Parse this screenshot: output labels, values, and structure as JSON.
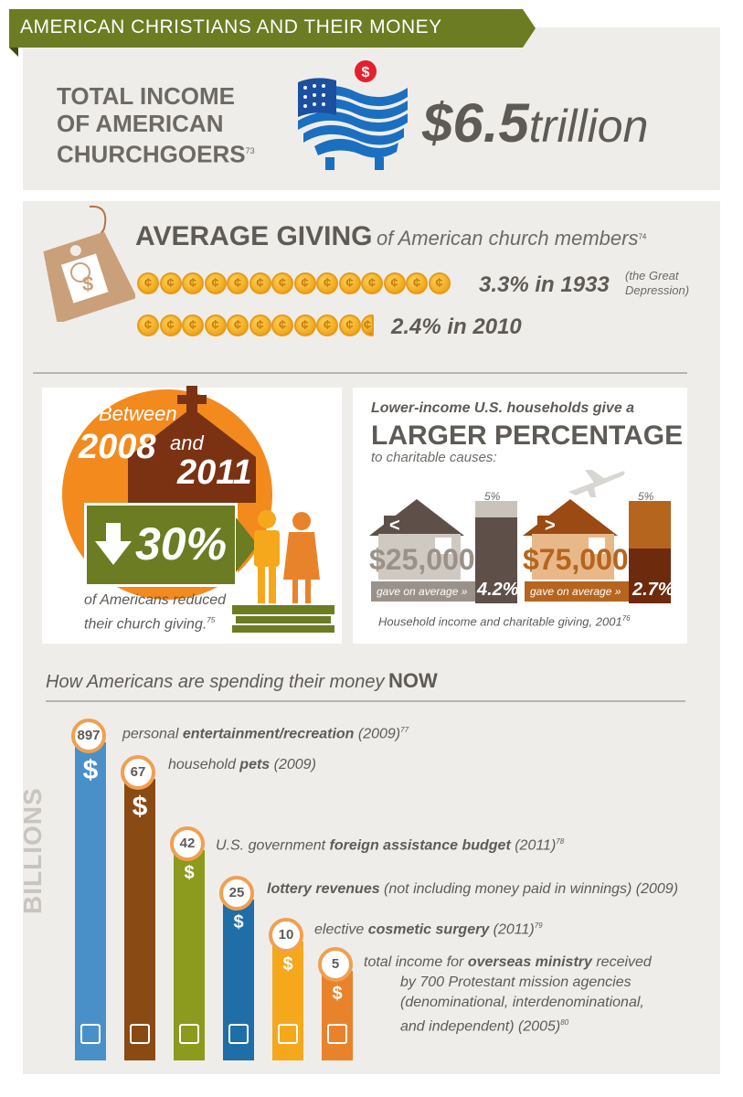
{
  "header": {
    "title": "AMERICAN CHRISTIANS AND THEIR MONEY"
  },
  "income": {
    "label_line1": "TOTAL INCOME",
    "label_line2": "OF AMERICAN",
    "label_line3": "CHURCHGOERS",
    "footnote": "73",
    "amount": "$6.5",
    "unit": "trillion",
    "badge": "$"
  },
  "giving": {
    "title_bold": "AVERAGE GIVING",
    "title_rest": "of American church members",
    "footnote": "74",
    "tag_symbol": "$",
    "coin_symbol": "¢",
    "rows": [
      {
        "text": "3.3% in 1933",
        "note_line1": "(the Great",
        "note_line2": "Depression)"
      },
      {
        "text": "2.4% in 2010",
        "note_line1": "",
        "note_line2": ""
      }
    ]
  },
  "reduction": {
    "between": "Between",
    "year1": "2008",
    "and": "and",
    "year2": "2011",
    "percent": "30%",
    "caption_line1": "of Americans reduced",
    "caption_line2": "their church giving.",
    "footnote": "75"
  },
  "households": {
    "intro": "Lower-income U.S. households give a",
    "headline": "LARGER PERCENTAGE",
    "subline": "to charitable causes:",
    "footer": "Household income and charitable giving, 2001",
    "footnote": "76",
    "items": [
      {
        "sign": "<",
        "income": "$25,000",
        "gave": "gave on average »",
        "pct": "4.2%",
        "scale": "5%"
      },
      {
        "sign": ">",
        "income": "$75,000",
        "gave": "gave on average »",
        "pct": "2.7%",
        "scale": "5%"
      }
    ]
  },
  "spending": {
    "title": "How Americans are spending their money",
    "title_bold": "NOW",
    "axis_label": "BILLIONS",
    "dollar": "$",
    "colors": [
      "#4a90c8",
      "#8a4a14",
      "#8c9a1e",
      "#1f6ea8",
      "#f5a81c",
      "#e8832c"
    ],
    "icons": [
      "clapperboard-icon",
      "dog-icon",
      "money-arrow-icon",
      "building-icon",
      "eye-icon",
      "heart-hand-icon"
    ],
    "items": [
      {
        "value": "897",
        "pre": "personal ",
        "bold": "entertainment/recreation",
        "post": " (2009)",
        "fn": "77"
      },
      {
        "value": "67",
        "pre": "household ",
        "bold": "pets",
        "post": " (2009)",
        "fn": ""
      },
      {
        "value": "42",
        "pre": "U.S. government ",
        "bold": "foreign assistance budget",
        "post": " (2011)",
        "fn": "78"
      },
      {
        "value": "25",
        "pre": "",
        "bold": "lottery revenues",
        "post": " (not including money paid in winnings) (2009)",
        "fn": ""
      },
      {
        "value": "10",
        "pre": "elective ",
        "bold": "cosmetic surgery",
        "post": " (2011)",
        "fn": "79"
      },
      {
        "value": "5",
        "pre": "total income for ",
        "bold": "overseas ministry",
        "post": " received",
        "fn": "",
        "extra_line1": "by 700 Protestant mission agencies",
        "extra_line2": "(denominational, interdenominational,",
        "extra_line3": "and independent) (2005)",
        "extra_fn": "80"
      }
    ]
  },
  "chart_data": {
    "type": "bar",
    "ylabel": "BILLIONS",
    "categories": [
      "personal entertainment/recreation (2009)",
      "household pets (2009)",
      "U.S. government foreign assistance budget (2011)",
      "lottery revenues (not including money paid in winnings) (2009)",
      "elective cosmetic surgery (2011)",
      "total income for overseas ministry (2005)"
    ],
    "values": [
      897,
      67,
      42,
      25,
      10,
      5
    ]
  }
}
